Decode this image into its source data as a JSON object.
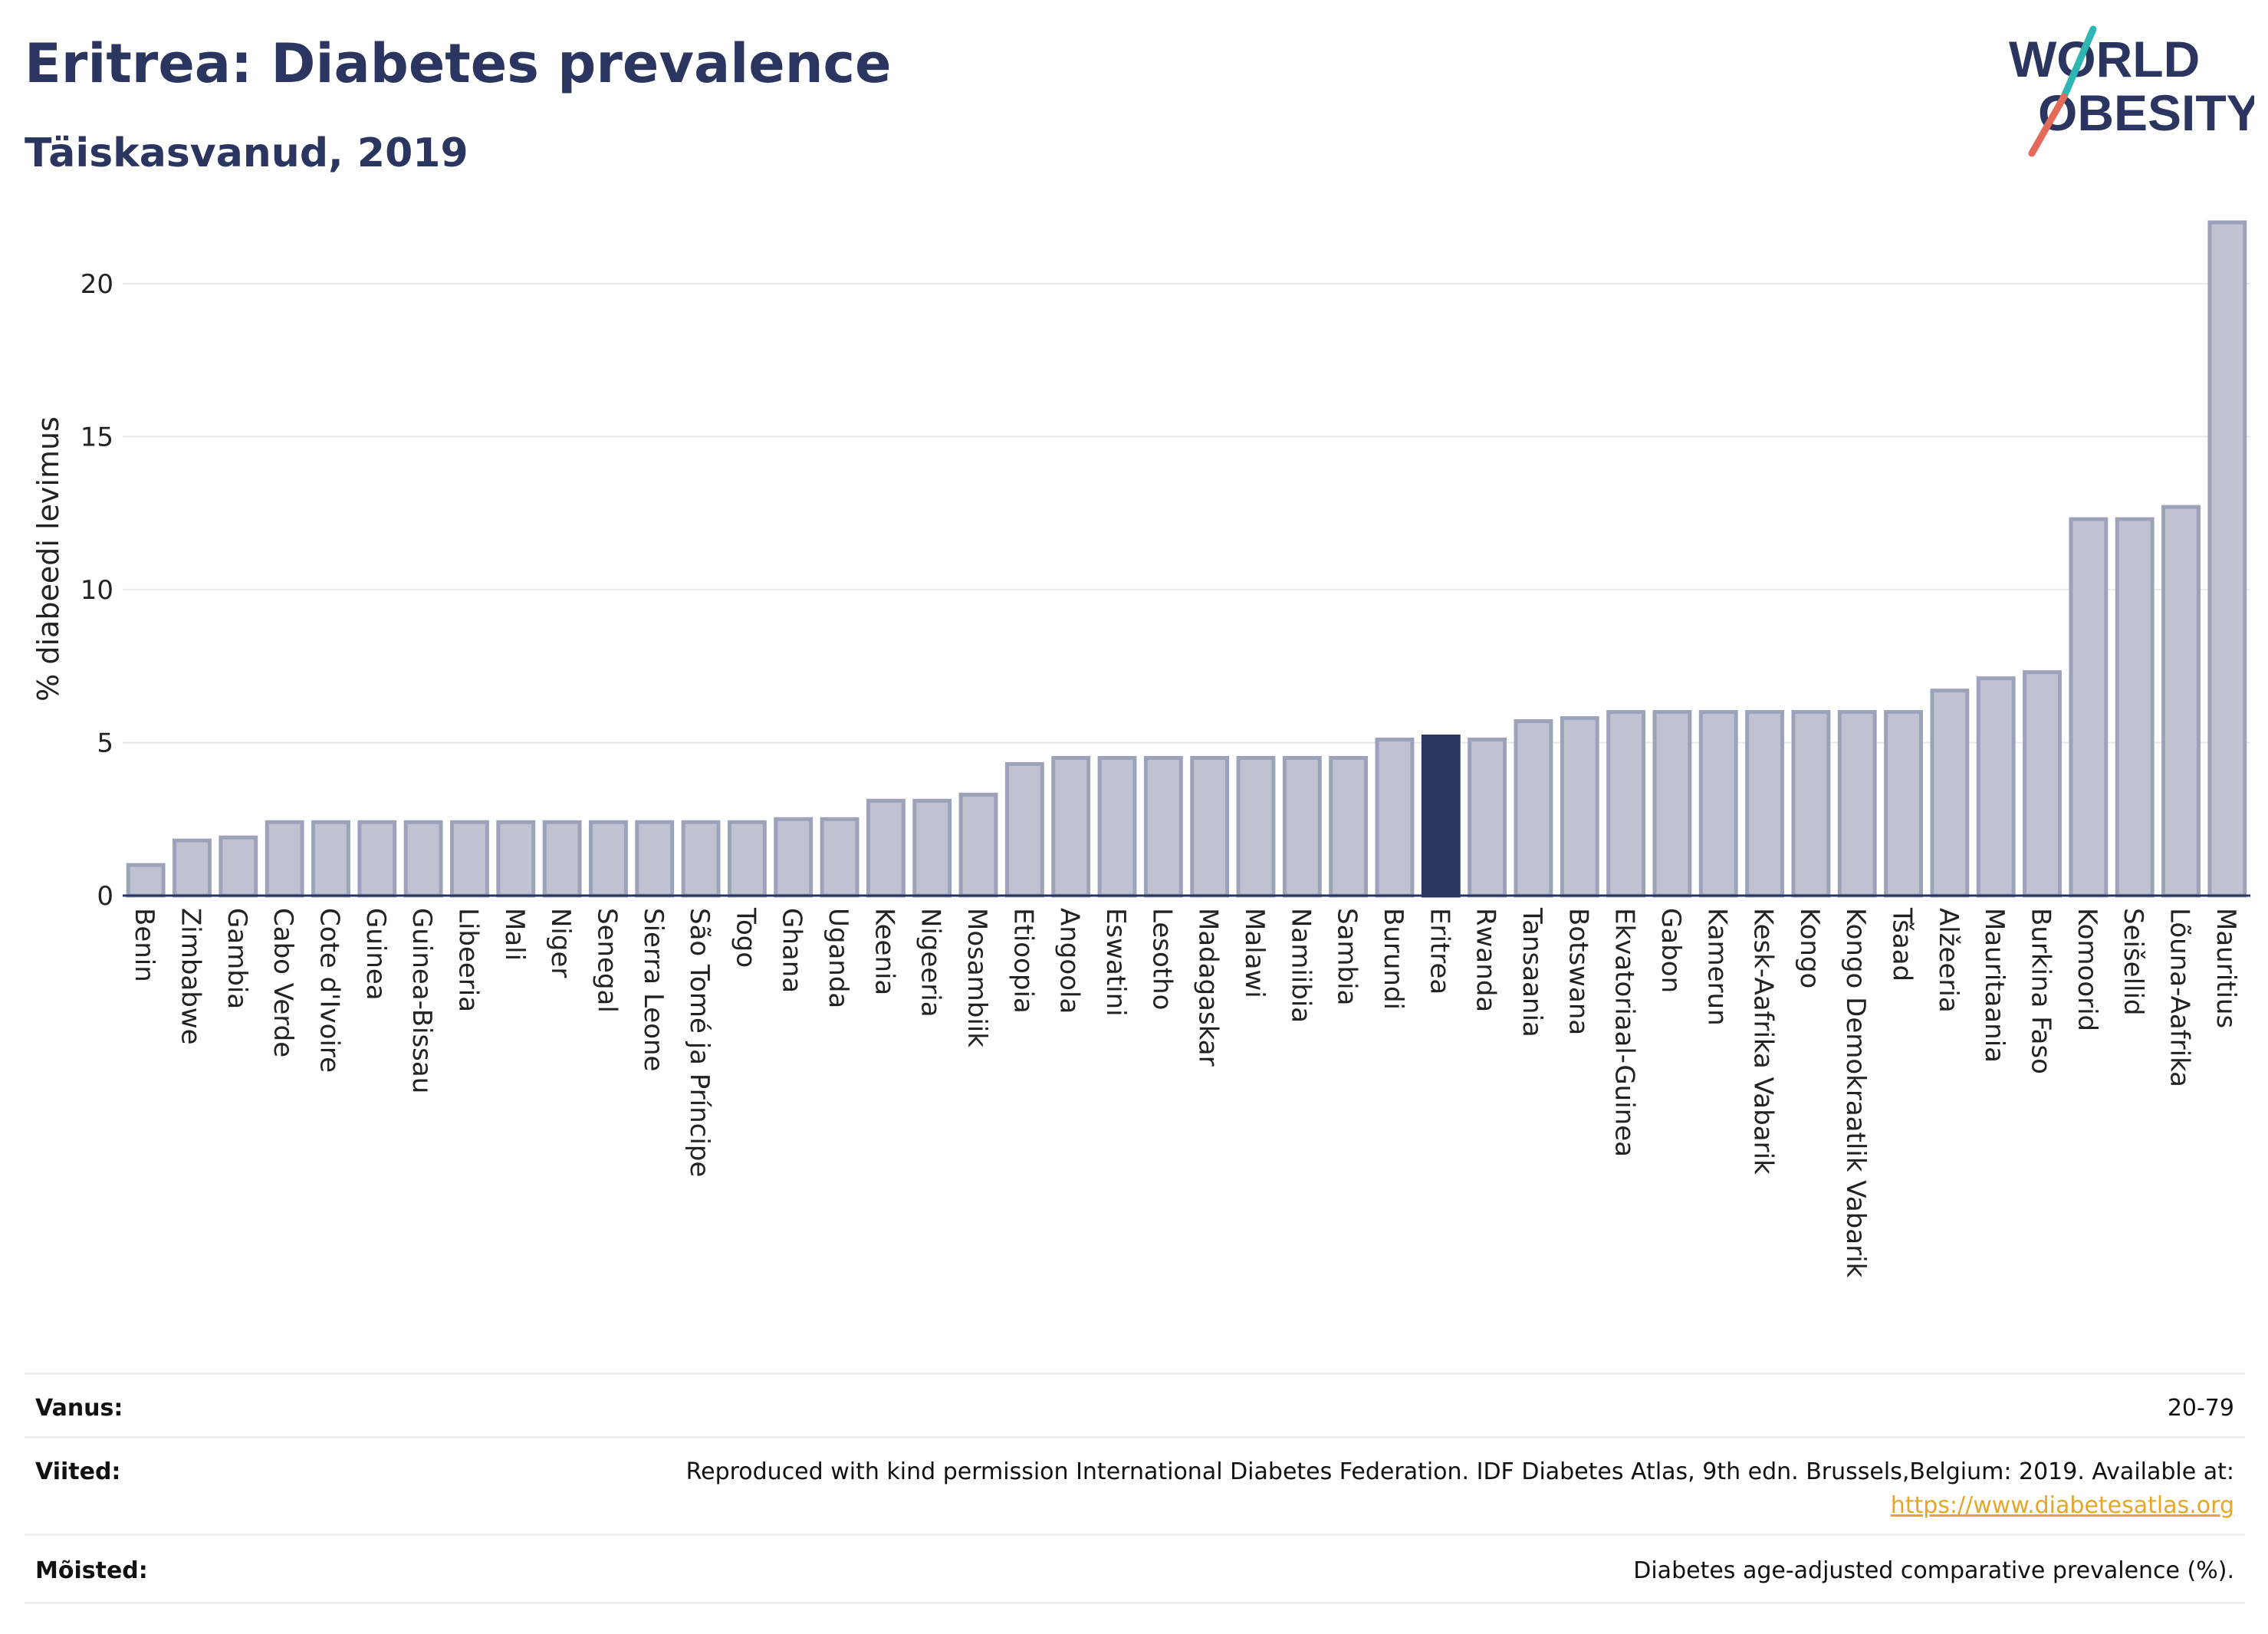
{
  "header": {
    "title": "Eritrea: Diabetes prevalence",
    "subtitle": "Täiskasvanud, 2019"
  },
  "logo": {
    "line1": "WORLD",
    "line2": "OBESITY",
    "colors": {
      "text": "#2a3560",
      "slash_teal": "#2fb5b2",
      "slash_red": "#e46a5a"
    }
  },
  "chart_data": {
    "type": "bar",
    "ylabel": "% diabeedi levimus",
    "ylim": [
      0,
      22
    ],
    "yticks": [
      0,
      5,
      10,
      15,
      20
    ],
    "grid": true,
    "highlight": "Eritrea",
    "colors": {
      "bar": "#bfc3d1",
      "bar_edge": "#9ca2b9",
      "highlight": "#2a3560",
      "grid": "#e8e8e8",
      "axis": "#2a3560"
    },
    "categories": [
      "Benin",
      "Zimbabwe",
      "Gambia",
      "Cabo Verde",
      "Cote d'Ivoire",
      "Guinea",
      "Guinea-Bissau",
      "Libeeria",
      "Mali",
      "Niger",
      "Senegal",
      "Sierra Leone",
      "São Tomé ja Príncipe",
      "Togo",
      "Ghana",
      "Uganda",
      "Keenia",
      "Nigeeria",
      "Mosambiik",
      "Etioopia",
      "Angoola",
      "Eswatini",
      "Lesotho",
      "Madagaskar",
      "Malawi",
      "Namiibia",
      "Sambia",
      "Burundi",
      "Eritrea",
      "Rwanda",
      "Tansaania",
      "Botswana",
      "Ekvatoriaal-Guinea",
      "Gabon",
      "Kamerun",
      "Kesk-Aafrika Vabarik",
      "Kongo",
      "Kongo Demokraatlik Vabarik",
      "Tšaad",
      "Alžeeria",
      "Mauritaania",
      "Burkina Faso",
      "Komoorid",
      "Seišellid",
      "Lõuna-Aafrika",
      "Mauritius"
    ],
    "values": [
      1.0,
      1.8,
      1.9,
      2.4,
      2.4,
      2.4,
      2.4,
      2.4,
      2.4,
      2.4,
      2.4,
      2.4,
      2.4,
      2.4,
      2.5,
      2.5,
      3.1,
      3.1,
      3.3,
      4.3,
      4.5,
      4.5,
      4.5,
      4.5,
      4.5,
      4.5,
      4.5,
      5.1,
      5.2,
      5.1,
      5.7,
      5.8,
      6.0,
      6.0,
      6.0,
      6.0,
      6.0,
      6.0,
      6.0,
      6.7,
      7.1,
      7.3,
      12.3,
      12.3,
      12.7,
      22.0
    ]
  },
  "footer": {
    "rows": [
      {
        "label": "Vanus:",
        "value": "20-79"
      },
      {
        "label": "Viited:",
        "value": "Reproduced with kind permission International Diabetes Federation. IDF Diabetes Atlas, 9th edn. Brussels,Belgium: 2019. Available at:",
        "link": "https://www.diabetesatlas.org"
      },
      {
        "label": "Mõisted:",
        "value": "Diabetes age-adjusted comparative prevalence (%)."
      }
    ]
  }
}
